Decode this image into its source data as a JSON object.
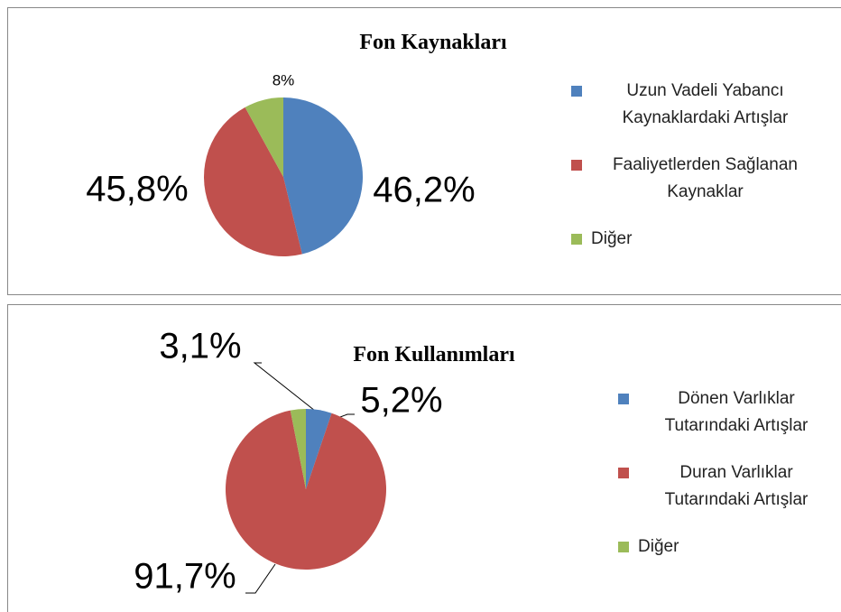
{
  "chart_data": [
    {
      "type": "pie",
      "title": "Fon Kaynakları",
      "series": [
        {
          "name": "Uzun Vadeli Yabancı Kaynaklardaki Artışlar",
          "color": "#4f81bd",
          "values": [
            46.2
          ],
          "value_labels": [
            "46,2%"
          ]
        },
        {
          "name": "Faaliyetlerden Sağlanan Kaynaklar",
          "color": "#c0504d",
          "values": [
            45.8
          ],
          "value_labels": [
            "45,8%"
          ]
        },
        {
          "name": "Diğer",
          "color": "#9bbb59",
          "values": [
            8
          ],
          "value_labels": [
            "8%"
          ]
        }
      ]
    },
    {
      "type": "pie",
      "title": "Fon Kullanımları",
      "series": [
        {
          "name": "Dönen Varlıklar Tutarındaki Artışlar",
          "color": "#4f81bd",
          "values": [
            5.2
          ],
          "value_labels": [
            "5,2%"
          ]
        },
        {
          "name": "Duran Varlıklar Tutarındaki Artışlar",
          "color": "#c0504d",
          "values": [
            91.7
          ],
          "value_labels": [
            "91,7%"
          ]
        },
        {
          "name": "Diğer",
          "color": "#9bbb59",
          "values": [
            3.1
          ],
          "value_labels": [
            "3,1%"
          ]
        }
      ]
    }
  ]
}
